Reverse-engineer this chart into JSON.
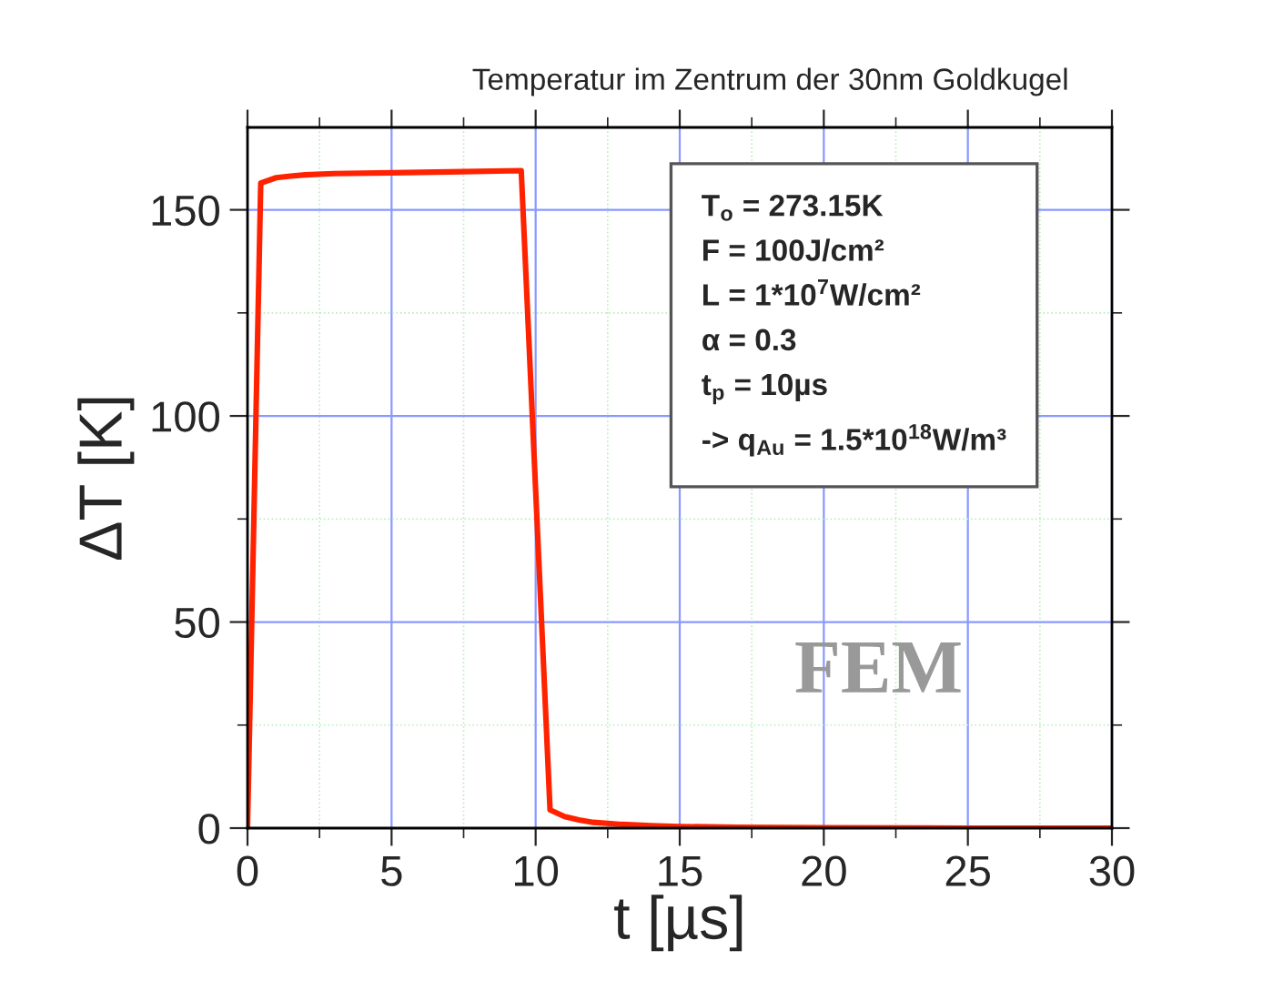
{
  "chart_data": {
    "type": "line",
    "title": "Temperatur im Zentrum der 30nm Goldkugel",
    "xlabel": "t [µs]",
    "ylabel": "ΔT [K]",
    "series": [
      {
        "color": "#ff2200",
        "x": [
          0,
          0.46,
          1,
          1.5,
          2,
          3,
          5,
          7,
          9.5,
          10.5,
          11,
          11.5,
          12,
          13,
          14,
          15,
          17,
          20,
          25,
          30
        ],
        "values": [
          0,
          156.5,
          157.8,
          158.2,
          158.5,
          158.8,
          159,
          159.2,
          159.5,
          4.4,
          2.8,
          2,
          1.4,
          0.9,
          0.6,
          0.4,
          0.2,
          0.1,
          0,
          0
        ]
      }
    ],
    "xlim": [
      0,
      30
    ],
    "xticks": [
      0,
      {
        "value": 2.5,
        "label": null
      },
      5,
      {
        "value": 7.5,
        "label": null
      },
      10,
      {
        "value": 12.5,
        "label": null
      },
      15,
      {
        "value": 17.5,
        "label": null
      },
      20,
      {
        "value": 22.5,
        "label": null
      },
      25,
      {
        "value": 27.5,
        "label": null
      },
      30
    ],
    "ylim": [
      0,
      170
    ],
    "yticks": [
      0,
      {
        "value": 25,
        "label": null
      },
      50,
      {
        "value": 75,
        "label": null
      },
      100,
      {
        "value": 125,
        "label": null
      },
      150
    ],
    "grid": true,
    "marker": "none",
    "line_style": "solid",
    "annotations": [
      "T$_{o}$ = 273.15K\nF = 100J/cm²\nL = 1*10$^{7}$W/cm²\nα = 0.3\nt$_{p}$ = 10µs\n-> q$_{Au}$ = 1.5*10$^{18}$W/m³",
      "FEM"
    ]
  }
}
